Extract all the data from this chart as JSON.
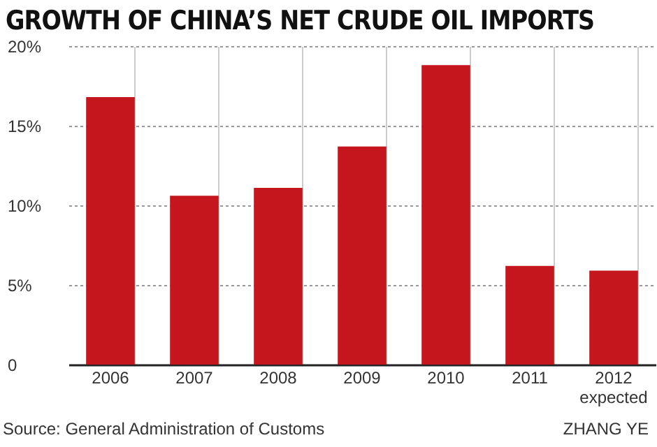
{
  "chart_data": {
    "type": "bar",
    "title": "GROWTH OF CHINA’S NET CRUDE OIL IMPORTS",
    "categories": [
      "2006",
      "2007",
      "2008",
      "2009",
      "2010",
      "2011",
      "2012 expected"
    ],
    "values": [
      16.8,
      10.6,
      11.1,
      13.7,
      18.8,
      6.2,
      5.9
    ],
    "color": "#c4161c",
    "ylim": [
      0,
      20
    ],
    "yticks": [
      {
        "value": 0,
        "label": "0"
      },
      {
        "value": 5,
        "label": "5%"
      },
      {
        "value": 10,
        "label": "10%"
      },
      {
        "value": 15,
        "label": "15%"
      },
      {
        "value": 20,
        "label": "20%"
      }
    ],
    "grid": true,
    "annotations": [
      "Source: General Administration of Customs",
      "ZHANG YE"
    ]
  }
}
